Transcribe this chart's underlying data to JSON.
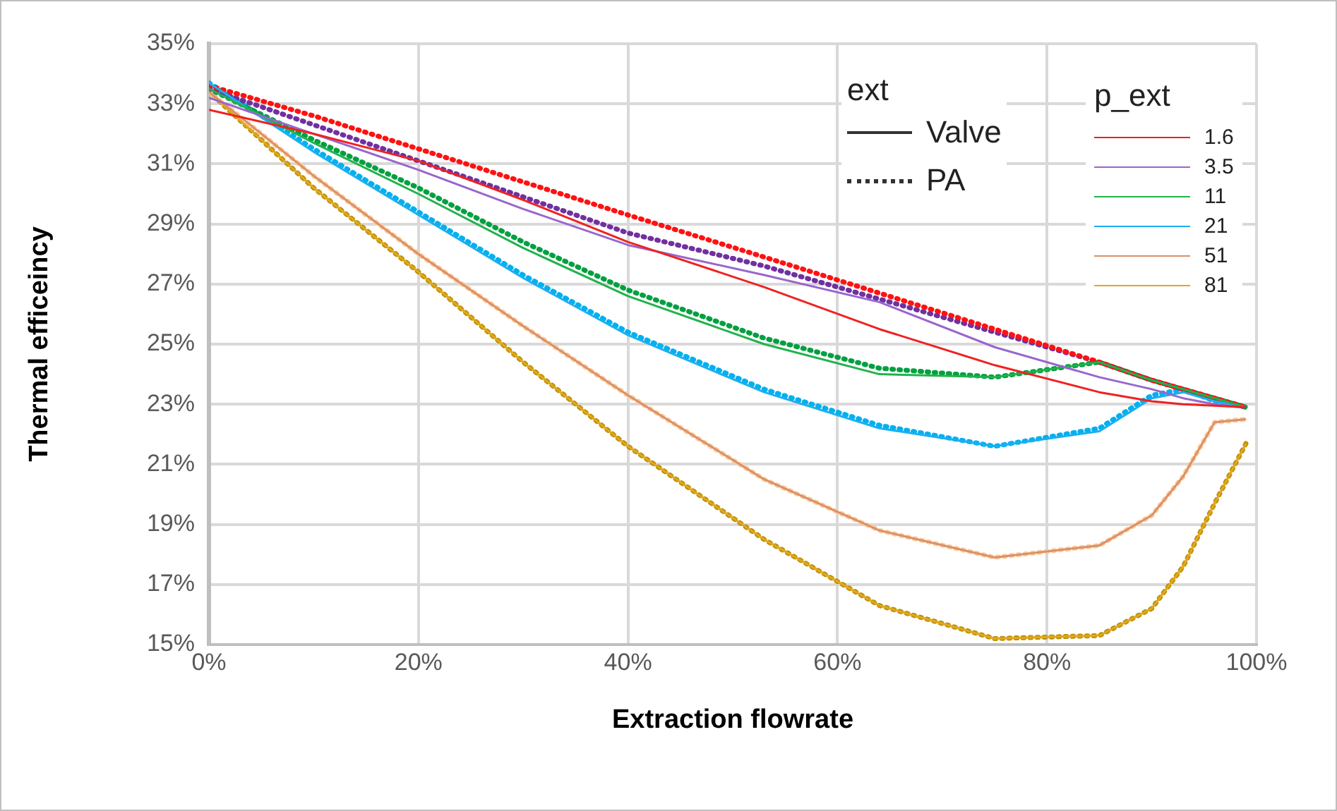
{
  "chart_data": {
    "type": "line",
    "xlabel": "Extraction flowrate",
    "ylabel": "Thermal efficeincy",
    "legend_title": "p_ext",
    "legend": "top right",
    "grid": true,
    "marker": "none",
    "annotations": [
      "ext",
      "Valve",
      "PA"
    ],
    "x": [
      0,
      10,
      20,
      30,
      40,
      53,
      64,
      75,
      85,
      90,
      93,
      96,
      99
    ],
    "xlim": [
      0,
      100
    ],
    "xticks": [
      {
        "value": 0,
        "label": "0%"
      },
      {
        "value": 20,
        "label": "20%"
      },
      {
        "value": 40,
        "label": "40%"
      },
      {
        "value": 60,
        "label": "60%"
      },
      {
        "value": 80,
        "label": "80%"
      },
      {
        "value": 100,
        "label": "100%"
      }
    ],
    "ylim": [
      15,
      35
    ],
    "yticks": [
      {
        "value": 15,
        "label": "15%"
      },
      {
        "value": 17,
        "label": "17%"
      },
      {
        "value": 19,
        "label": "19%"
      },
      {
        "value": 21,
        "label": "21%"
      },
      {
        "value": 23,
        "label": "23%"
      },
      {
        "value": 25,
        "label": "25%"
      },
      {
        "value": 27,
        "label": "27%"
      },
      {
        "value": 29,
        "label": "29%"
      },
      {
        "value": 31,
        "label": "31%"
      },
      {
        "value": 33,
        "label": "33%"
      },
      {
        "value": 35,
        "label": "35%"
      }
    ],
    "series": [
      {
        "name": "1.6",
        "color": "#ee2222",
        "line_style": "solid",
        "values": [
          32.8,
          32.0,
          31.1,
          29.8,
          28.4,
          26.9,
          25.5,
          24.3,
          23.4,
          23.1,
          23.0,
          22.95,
          22.9
        ]
      },
      {
        "name": "3.5",
        "color": "#9966cc",
        "line_style": "solid",
        "values": [
          33.2,
          32.0,
          30.8,
          29.5,
          28.3,
          27.3,
          26.4,
          24.9,
          23.9,
          23.5,
          23.2,
          23.0,
          22.9
        ]
      },
      {
        "name": "11",
        "color": "#22b14c",
        "line_style": "solid",
        "values": [
          33.5,
          31.7,
          30.0,
          28.2,
          26.6,
          25.0,
          24.0,
          23.9,
          24.4,
          23.8,
          23.5,
          23.2,
          22.9
        ]
      },
      {
        "name": "21",
        "color": "#1ab0f0",
        "line_style": "solid",
        "values": [
          33.7,
          31.4,
          29.3,
          27.2,
          25.3,
          23.4,
          22.2,
          21.6,
          22.1,
          23.2,
          23.4,
          23.1,
          22.9
        ]
      },
      {
        "name": "51",
        "color": "#d9906a",
        "line_style": "solid",
        "values": [
          33.4,
          30.6,
          28.0,
          25.6,
          23.3,
          20.5,
          18.8,
          17.9,
          18.3,
          19.3,
          20.6,
          22.4,
          22.5
        ]
      },
      {
        "name": "81",
        "color": "#e0a820",
        "line_style": "solid",
        "values": [
          33.4,
          30.2,
          27.4,
          24.4,
          21.6,
          18.5,
          16.3,
          15.2,
          15.3,
          16.2,
          17.6,
          19.7,
          21.7
        ]
      },
      {
        "color": "#ff1111",
        "line_style": "dotted",
        "values": [
          33.6,
          32.6,
          31.5,
          30.4,
          29.3,
          27.9,
          26.7,
          25.5,
          24.4,
          23.8,
          23.5,
          23.2,
          22.9
        ]
      },
      {
        "color": "#7030a0",
        "line_style": "dotted",
        "values": [
          33.5,
          32.3,
          31.1,
          29.9,
          28.7,
          27.6,
          26.5,
          25.4,
          24.4,
          23.8,
          23.5,
          23.2,
          22.9
        ]
      },
      {
        "color": "#00a040",
        "line_style": "dotted",
        "values": [
          33.5,
          31.8,
          30.2,
          28.4,
          26.8,
          25.2,
          24.2,
          23.9,
          24.4,
          23.8,
          23.5,
          23.2,
          22.9
        ]
      },
      {
        "color": "#00b0f0",
        "line_style": "dotted",
        "values": [
          33.7,
          31.5,
          29.4,
          27.3,
          25.4,
          23.5,
          22.3,
          21.6,
          22.2,
          23.3,
          23.5,
          23.1,
          22.9
        ]
      },
      {
        "color": "#ffcc99",
        "line_style": "dotted",
        "values": [
          33.4,
          30.6,
          28.0,
          25.6,
          23.3,
          20.5,
          18.8,
          17.9,
          18.3,
          19.3,
          20.6,
          22.4,
          22.5
        ]
      },
      {
        "color": "#bf9000",
        "line_style": "dotted",
        "values": [
          33.4,
          30.2,
          27.4,
          24.4,
          21.6,
          18.5,
          16.3,
          15.2,
          15.3,
          16.2,
          17.6,
          19.7,
          21.7
        ]
      }
    ]
  }
}
